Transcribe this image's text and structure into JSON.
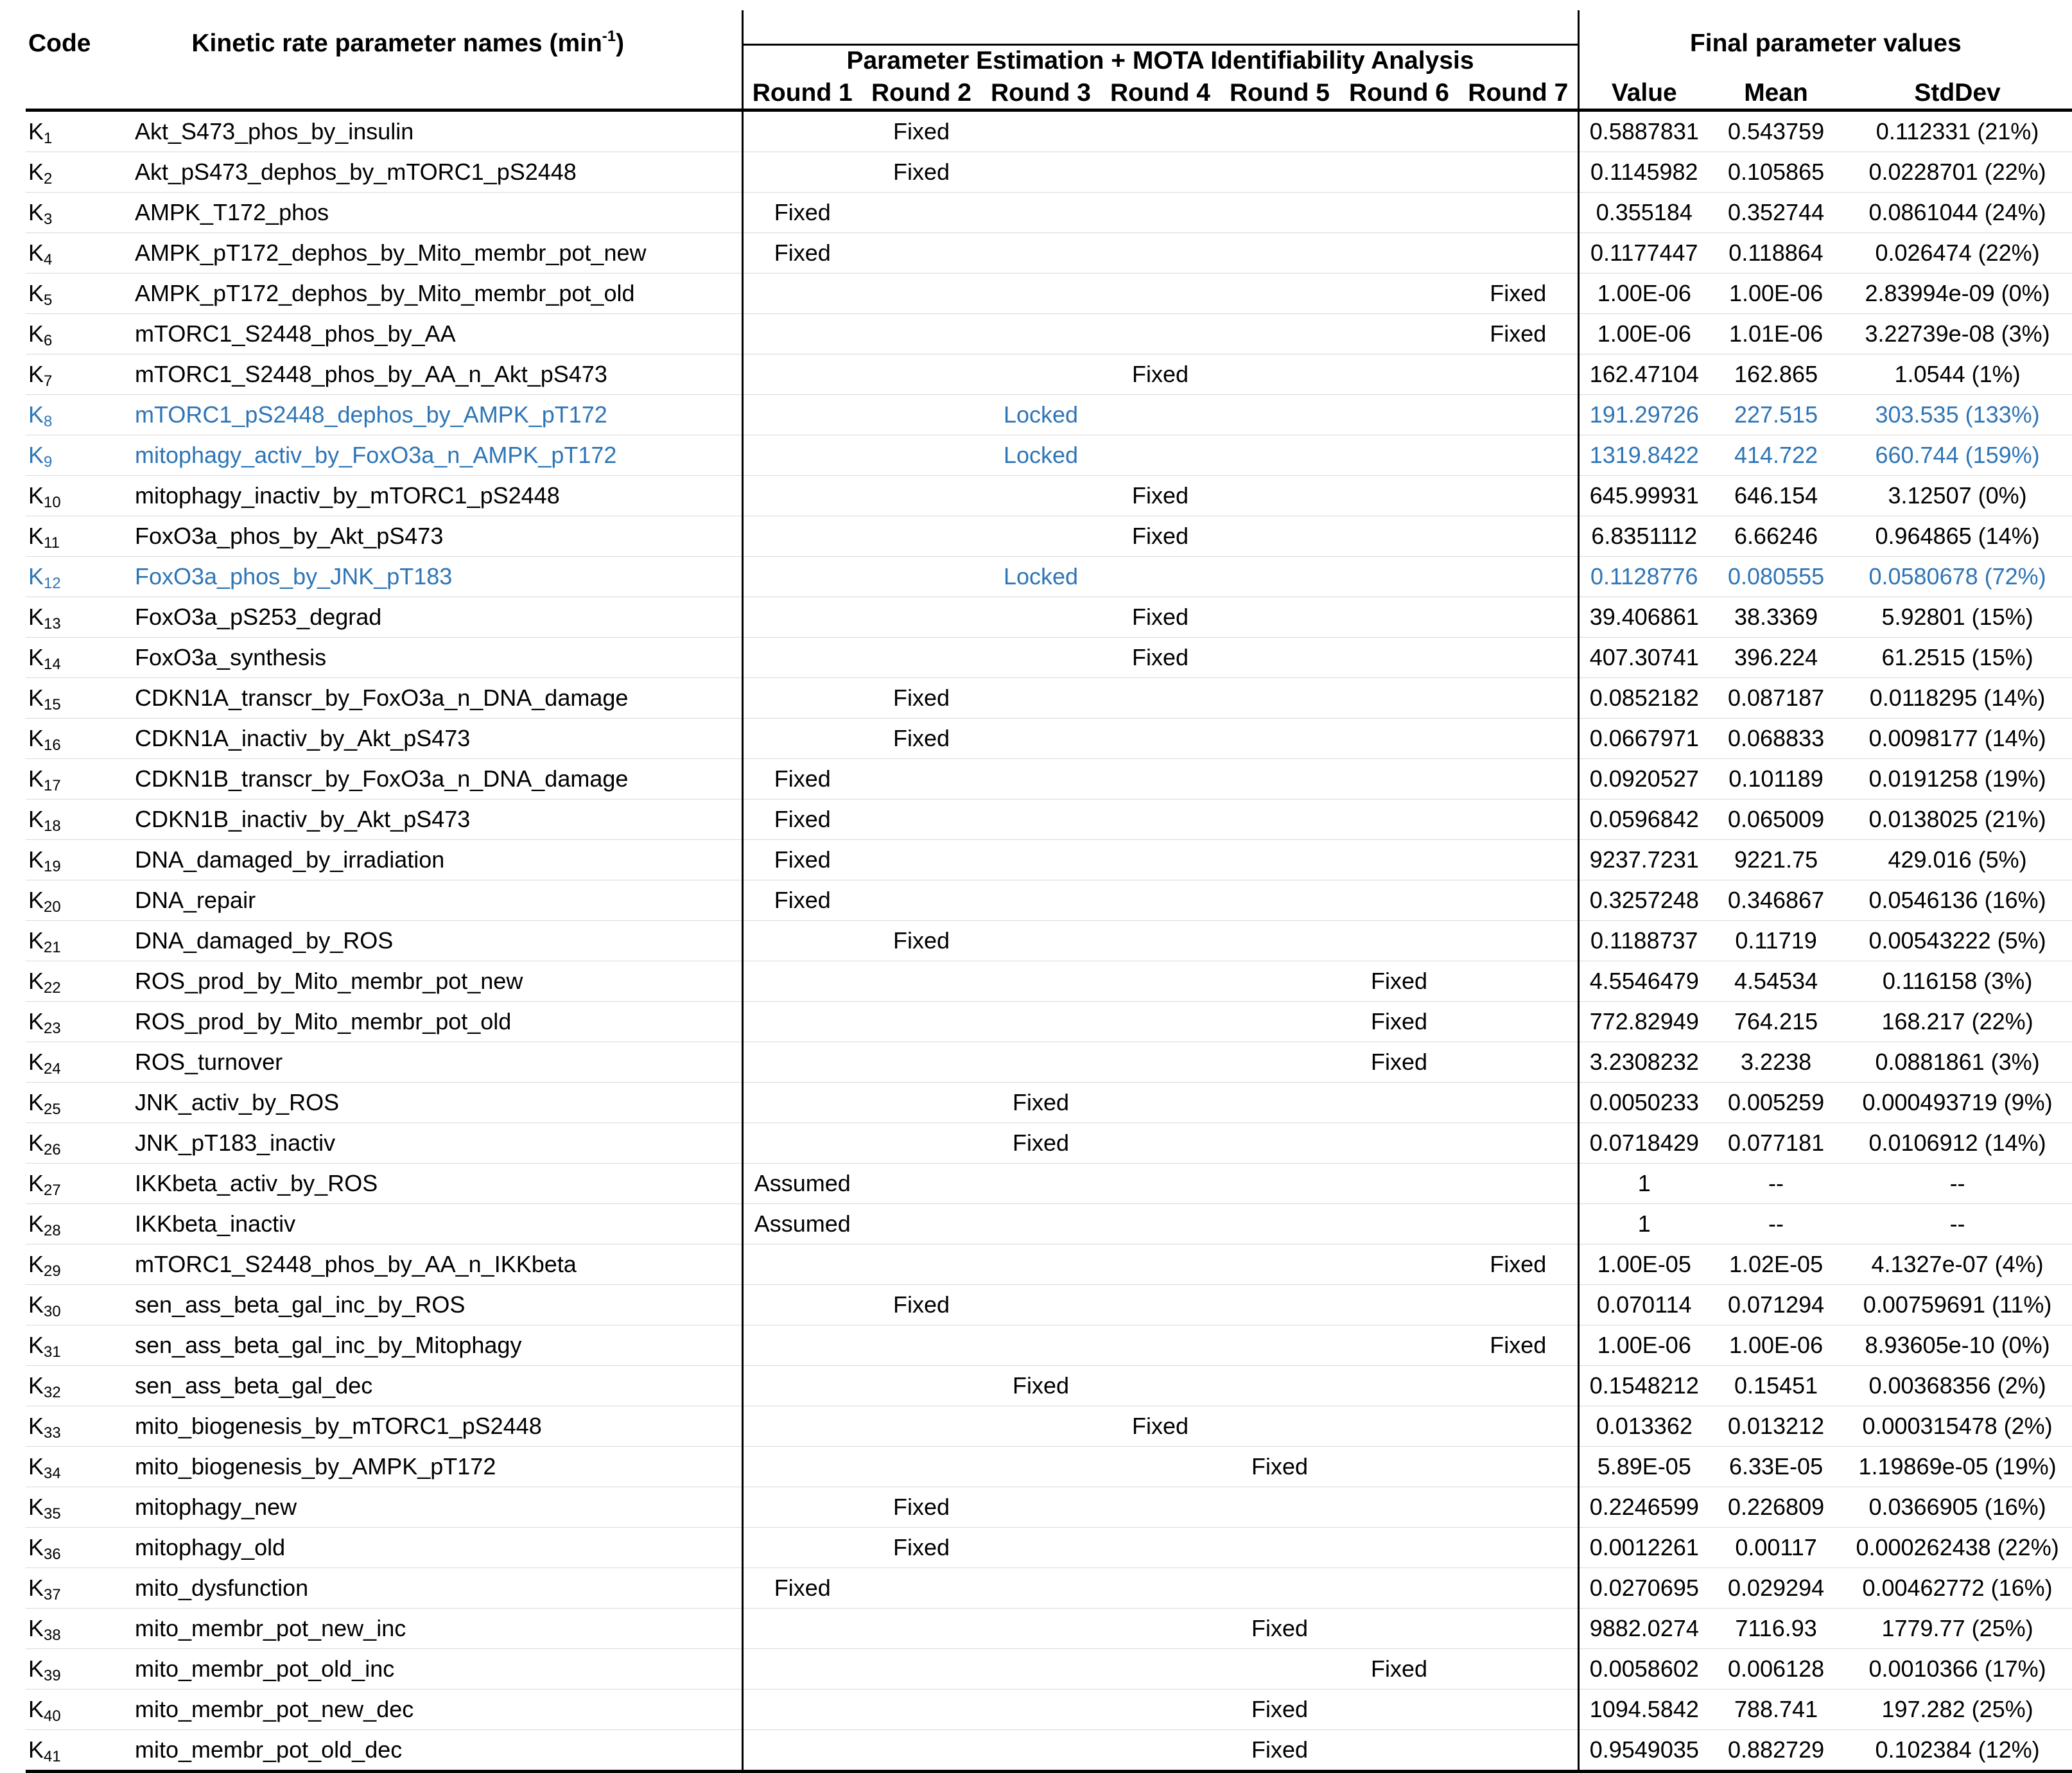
{
  "header": {
    "code": "Code",
    "names_text": "Kinetic rate parameter names (min",
    "names_sup": "-1",
    "names_close": ")",
    "group_title": "Parameter Estimation + MOTA Identifiability Analysis",
    "final_title": "Final parameter values",
    "rounds": [
      "Round 1",
      "Round 2",
      "Round 3",
      "Round 4",
      "Round 5",
      "Round 6",
      "Round 7"
    ],
    "value": "Value",
    "mean": "Mean",
    "stddev": "StdDev"
  },
  "colors": {
    "highlight": "#2e75b6"
  },
  "rows": [
    {
      "k": "1",
      "name": "Akt_S473_phos_by_insulin",
      "round": 2,
      "status": "Fixed",
      "value": "0.5887831",
      "mean": "0.543759",
      "std": "0.112331 (21%)"
    },
    {
      "k": "2",
      "name": "Akt_pS473_dephos_by_mTORC1_pS2448",
      "round": 2,
      "status": "Fixed",
      "value": "0.1145982",
      "mean": "0.105865",
      "std": "0.0228701 (22%)"
    },
    {
      "k": "3",
      "name": "AMPK_T172_phos",
      "round": 1,
      "status": "Fixed",
      "value": "0.355184",
      "mean": "0.352744",
      "std": "0.0861044 (24%)"
    },
    {
      "k": "4",
      "name": "AMPK_pT172_dephos_by_Mito_membr_pot_new",
      "round": 1,
      "status": "Fixed",
      "value": "0.1177447",
      "mean": "0.118864",
      "std": "0.026474 (22%)"
    },
    {
      "k": "5",
      "name": "AMPK_pT172_dephos_by_Mito_membr_pot_old",
      "round": 7,
      "status": "Fixed",
      "value": "1.00E-06",
      "mean": "1.00E-06",
      "std": "2.83994e-09 (0%)"
    },
    {
      "k": "6",
      "name": "mTORC1_S2448_phos_by_AA",
      "round": 7,
      "status": "Fixed",
      "value": "1.00E-06",
      "mean": "1.01E-06",
      "std": "3.22739e-08 (3%)"
    },
    {
      "k": "7",
      "name": "mTORC1_S2448_phos_by_AA_n_Akt_pS473",
      "round": 4,
      "status": "Fixed",
      "value": "162.47104",
      "mean": "162.865",
      "std": "1.0544 (1%)"
    },
    {
      "k": "8",
      "name": "mTORC1_pS2448_dephos_by_AMPK_pT172",
      "round": 3,
      "status": "Locked",
      "value": "191.29726",
      "mean": "227.515",
      "std": "303.535 (133%)",
      "hl": true
    },
    {
      "k": "9",
      "name": "mitophagy_activ_by_FoxO3a_n_AMPK_pT172",
      "round": 3,
      "status": "Locked",
      "value": "1319.8422",
      "mean": "414.722",
      "std": "660.744 (159%)",
      "hl": true
    },
    {
      "k": "10",
      "name": "mitophagy_inactiv_by_mTORC1_pS2448",
      "round": 4,
      "status": "Fixed",
      "value": "645.99931",
      "mean": "646.154",
      "std": "3.12507 (0%)"
    },
    {
      "k": "11",
      "name": "FoxO3a_phos_by_Akt_pS473",
      "round": 4,
      "status": "Fixed",
      "value": "6.8351112",
      "mean": "6.66246",
      "std": "0.964865 (14%)"
    },
    {
      "k": "12",
      "name": "FoxO3a_phos_by_JNK_pT183",
      "round": 3,
      "status": "Locked",
      "value": "0.1128776",
      "mean": "0.080555",
      "std": "0.0580678 (72%)",
      "hl": true
    },
    {
      "k": "13",
      "name": "FoxO3a_pS253_degrad",
      "round": 4,
      "status": "Fixed",
      "value": "39.406861",
      "mean": "38.3369",
      "std": "5.92801 (15%)"
    },
    {
      "k": "14",
      "name": "FoxO3a_synthesis",
      "round": 4,
      "status": "Fixed",
      "value": "407.30741",
      "mean": "396.224",
      "std": "61.2515 (15%)"
    },
    {
      "k": "15",
      "name": "CDKN1A_transcr_by_FoxO3a_n_DNA_damage",
      "round": 2,
      "status": "Fixed",
      "value": "0.0852182",
      "mean": "0.087187",
      "std": "0.0118295 (14%)"
    },
    {
      "k": "16",
      "name": "CDKN1A_inactiv_by_Akt_pS473",
      "round": 2,
      "status": "Fixed",
      "value": "0.0667971",
      "mean": "0.068833",
      "std": "0.0098177 (14%)"
    },
    {
      "k": "17",
      "name": "CDKN1B_transcr_by_FoxO3a_n_DNA_damage",
      "round": 1,
      "status": "Fixed",
      "value": "0.0920527",
      "mean": "0.101189",
      "std": "0.0191258 (19%)"
    },
    {
      "k": "18",
      "name": "CDKN1B_inactiv_by_Akt_pS473",
      "round": 1,
      "status": "Fixed",
      "value": "0.0596842",
      "mean": "0.065009",
      "std": "0.0138025 (21%)"
    },
    {
      "k": "19",
      "name": "DNA_damaged_by_irradiation",
      "round": 1,
      "status": "Fixed",
      "value": "9237.7231",
      "mean": "9221.75",
      "std": "429.016 (5%)"
    },
    {
      "k": "20",
      "name": "DNA_repair",
      "round": 1,
      "status": "Fixed",
      "value": "0.3257248",
      "mean": "0.346867",
      "std": "0.0546136 (16%)"
    },
    {
      "k": "21",
      "name": "DNA_damaged_by_ROS",
      "round": 2,
      "status": "Fixed",
      "value": "0.1188737",
      "mean": "0.11719",
      "std": "0.00543222 (5%)"
    },
    {
      "k": "22",
      "name": "ROS_prod_by_Mito_membr_pot_new",
      "round": 6,
      "status": "Fixed",
      "value": "4.5546479",
      "mean": "4.54534",
      "std": "0.116158 (3%)"
    },
    {
      "k": "23",
      "name": "ROS_prod_by_Mito_membr_pot_old",
      "round": 6,
      "status": "Fixed",
      "value": "772.82949",
      "mean": "764.215",
      "std": "168.217 (22%)"
    },
    {
      "k": "24",
      "name": "ROS_turnover",
      "round": 6,
      "status": "Fixed",
      "value": "3.2308232",
      "mean": "3.2238",
      "std": "0.0881861 (3%)"
    },
    {
      "k": "25",
      "name": "JNK_activ_by_ROS",
      "round": 3,
      "status": "Fixed",
      "value": "0.0050233",
      "mean": "0.005259",
      "std": "0.000493719 (9%)"
    },
    {
      "k": "26",
      "name": "JNK_pT183_inactiv",
      "round": 3,
      "status": "Fixed",
      "value": "0.0718429",
      "mean": "0.077181",
      "std": "0.0106912 (14%)"
    },
    {
      "k": "27",
      "name": "IKKbeta_activ_by_ROS",
      "round": 1,
      "status": "Assumed",
      "value": "1",
      "mean": "--",
      "std": "--"
    },
    {
      "k": "28",
      "name": "IKKbeta_inactiv",
      "round": 1,
      "status": "Assumed",
      "value": "1",
      "mean": "--",
      "std": "--"
    },
    {
      "k": "29",
      "name": "mTORC1_S2448_phos_by_AA_n_IKKbeta",
      "round": 7,
      "status": "Fixed",
      "value": "1.00E-05",
      "mean": "1.02E-05",
      "std": "4.1327e-07 (4%)"
    },
    {
      "k": "30",
      "name": "sen_ass_beta_gal_inc_by_ROS",
      "round": 2,
      "status": "Fixed",
      "value": "0.070114",
      "mean": "0.071294",
      "std": "0.00759691 (11%)"
    },
    {
      "k": "31",
      "name": "sen_ass_beta_gal_inc_by_Mitophagy",
      "round": 7,
      "status": "Fixed",
      "value": "1.00E-06",
      "mean": "1.00E-06",
      "std": "8.93605e-10 (0%)"
    },
    {
      "k": "32",
      "name": "sen_ass_beta_gal_dec",
      "round": 3,
      "status": "Fixed",
      "value": "0.1548212",
      "mean": "0.15451",
      "std": "0.00368356 (2%)"
    },
    {
      "k": "33",
      "name": "mito_biogenesis_by_mTORC1_pS2448",
      "round": 4,
      "status": "Fixed",
      "value": "0.013362",
      "mean": "0.013212",
      "std": "0.000315478 (2%)"
    },
    {
      "k": "34",
      "name": "mito_biogenesis_by_AMPK_pT172",
      "round": 5,
      "status": "Fixed",
      "value": "5.89E-05",
      "mean": "6.33E-05",
      "std": "1.19869e-05 (19%)"
    },
    {
      "k": "35",
      "name": "mitophagy_new",
      "round": 2,
      "status": "Fixed",
      "value": "0.2246599",
      "mean": "0.226809",
      "std": "0.0366905 (16%)"
    },
    {
      "k": "36",
      "name": "mitophagy_old",
      "round": 2,
      "status": "Fixed",
      "value": "0.0012261",
      "mean": "0.00117",
      "std": "0.000262438 (22%)"
    },
    {
      "k": "37",
      "name": "mito_dysfunction",
      "round": 1,
      "status": "Fixed",
      "value": "0.0270695",
      "mean": "0.029294",
      "std": "0.00462772 (16%)"
    },
    {
      "k": "38",
      "name": "mito_membr_pot_new_inc",
      "round": 5,
      "status": "Fixed",
      "value": "9882.0274",
      "mean": "7116.93",
      "std": "1779.77 (25%)"
    },
    {
      "k": "39",
      "name": "mito_membr_pot_old_inc",
      "round": 6,
      "status": "Fixed",
      "value": "0.0058602",
      "mean": "0.006128",
      "std": "0.0010366 (17%)"
    },
    {
      "k": "40",
      "name": "mito_membr_pot_new_dec",
      "round": 5,
      "status": "Fixed",
      "value": "1094.5842",
      "mean": "788.741",
      "std": "197.282 (25%)"
    },
    {
      "k": "41",
      "name": "mito_membr_pot_old_dec",
      "round": 5,
      "status": "Fixed",
      "value": "0.9549035",
      "mean": "0.882729",
      "std": "0.102384 (12%)"
    }
  ]
}
